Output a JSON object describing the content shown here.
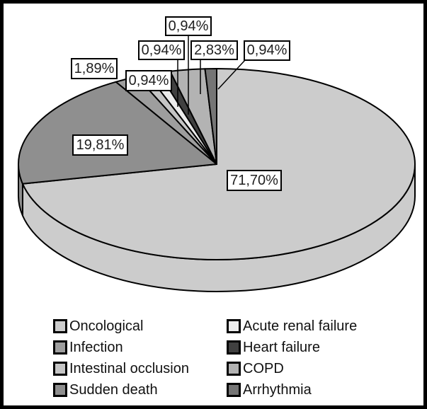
{
  "chart_data": {
    "type": "pie",
    "style": "3d",
    "title": "",
    "unit": "%",
    "decimal_separator": ",",
    "slices": [
      {
        "label": "Oncological",
        "value": 71.7,
        "display": "71,70%",
        "color": "#cccccc"
      },
      {
        "label": "Sudden death",
        "value": 19.81,
        "display": "19,81%",
        "color": "#8f8f8f"
      },
      {
        "label": "Infection",
        "value": 1.89,
        "display": "1,89%",
        "color": "#9e9e9e"
      },
      {
        "label": "Intestinal occlusion",
        "value": 0.94,
        "display": "0,94%",
        "color": "#c5c5c5"
      },
      {
        "label": "Acute renal failure",
        "value": 0.94,
        "display": "0,94%",
        "color": "#ececec"
      },
      {
        "label": "Heart failure",
        "value": 0.94,
        "display": "0,94%",
        "color": "#404040"
      },
      {
        "label": "COPD",
        "value": 2.83,
        "display": "2,83%",
        "color": "#b3b3b3"
      },
      {
        "label": "Arrhythmia",
        "value": 0.94,
        "display": "0,94%",
        "color": "#757575"
      }
    ],
    "legend": {
      "position": "bottom",
      "columns": 2,
      "entries": [
        {
          "label": "Oncological",
          "color": "#cccccc"
        },
        {
          "label": "Acute renal failure",
          "color": "#ececec"
        },
        {
          "label": "Infection",
          "color": "#9e9e9e"
        },
        {
          "label": "Heart failure",
          "color": "#404040"
        },
        {
          "label": "Intestinal occlusion",
          "color": "#c5c5c5"
        },
        {
          "label": "COPD",
          "color": "#b3b3b3"
        },
        {
          "label": "Sudden death",
          "color": "#8f8f8f"
        },
        {
          "label": "Arrhythmia",
          "color": "#757575"
        }
      ]
    },
    "layout_hints": {
      "start_angle_deg_clockwise_from_top": 0,
      "direction": "clockwise",
      "outline_color": "#000000",
      "background": "#ffffff"
    }
  }
}
